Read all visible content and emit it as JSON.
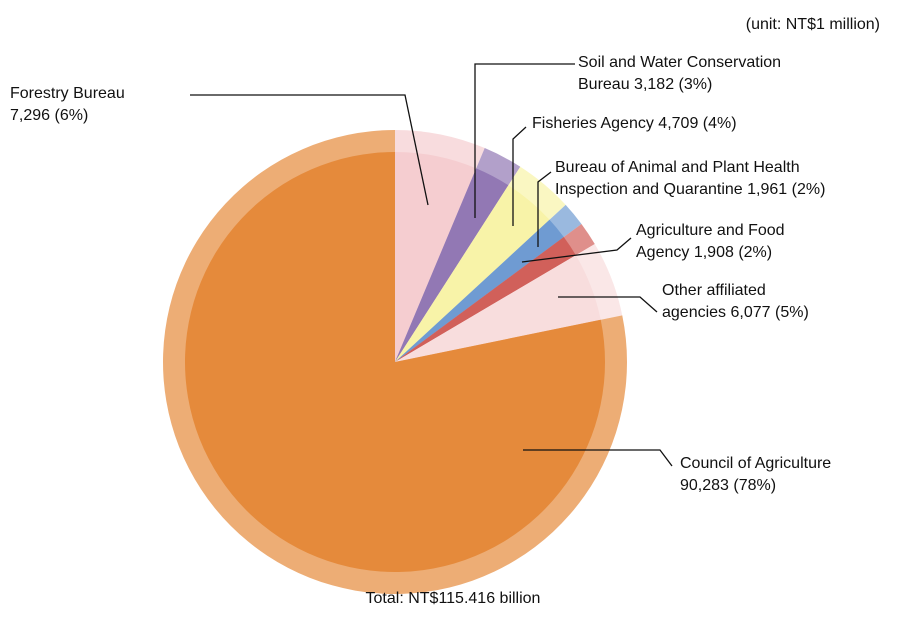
{
  "chart_data": {
    "type": "pie",
    "unit_note": "(unit: NT$1 million)",
    "total_label": "Total: NT$115.416 billion",
    "categories": [
      "Forestry Bureau",
      "Soil and Water Conservation Bureau",
      "Fisheries Agency",
      "Bureau of Animal and Plant Health Inspection and Quarantine",
      "Agriculture and Food Agency",
      "Other affiliated agencies",
      "Council of Agriculture"
    ],
    "values": [
      7296,
      3182,
      4709,
      1961,
      1908,
      6077,
      90283
    ],
    "value_labels": [
      "7,296 (6%)",
      "3,182 (3%)",
      "4,709 (4%)",
      "1,961 (2%)",
      "1,908 (2%)",
      "6,077 (5%)",
      "90,283 (78%)"
    ],
    "colors": [
      "#f5cdd0",
      "#9278b4",
      "#f8f3a8",
      "#6f9bd2",
      "#d1605a",
      "#f8dddd",
      "#e58a3b"
    ],
    "start_angle": 0,
    "direction": "clockwise"
  }
}
